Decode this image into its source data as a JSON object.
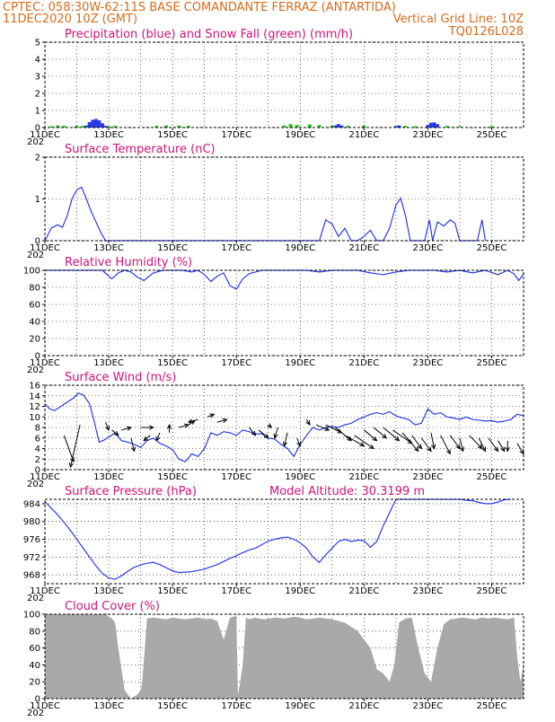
{
  "header": {
    "line1_left": "CPTEC:  058:30W-62:11S  BASE COMANDANTE FERRAZ (ANTARTIDA)",
    "line2_left": "11DEC2020 10Z (GMT)",
    "line2_right": "Vertical Grid Line: 10Z",
    "line3_right": "TQ0126L028",
    "under_label": "202"
  },
  "x_labels": [
    "11DEC",
    "13DEC",
    "15DEC",
    "17DEC",
    "19DEC",
    "21DEC",
    "23DEC",
    "25DEC"
  ],
  "colors": {
    "blue": "#2a3be6",
    "green": "#22c61e",
    "title": "#d1127a",
    "header": "#d86a1a",
    "cloud": "#a9a9a9"
  },
  "chart_data": [
    {
      "type": "bar",
      "title": "Precipitation (blue) and Snow Fall (green) (mm/h)",
      "yticks": [
        "0",
        "1",
        "2",
        "3",
        "4",
        "5"
      ],
      "ylim": [
        0,
        5
      ],
      "xlim": [
        0,
        15
      ],
      "series": [
        {
          "name": "Precipitation",
          "color": "#2a3be6",
          "points": [
            [
              1.3,
              0.12
            ],
            [
              1.4,
              0.32
            ],
            [
              1.5,
              0.45
            ],
            [
              1.6,
              0.5
            ],
            [
              1.7,
              0.42
            ],
            [
              1.8,
              0.25
            ],
            [
              1.9,
              0.1
            ],
            [
              9.1,
              0.12
            ],
            [
              9.2,
              0.2
            ],
            [
              9.3,
              0.12
            ],
            [
              11.0,
              0.08
            ],
            [
              11.1,
              0.12
            ],
            [
              12.0,
              0.15
            ],
            [
              12.1,
              0.28
            ],
            [
              12.2,
              0.3
            ],
            [
              12.3,
              0.2
            ]
          ]
        },
        {
          "name": "Snow Fall",
          "color": "#22c61e",
          "points": [
            [
              0.2,
              0.08
            ],
            [
              0.4,
              0.12
            ],
            [
              0.6,
              0.1
            ],
            [
              1.0,
              0.1
            ],
            [
              1.2,
              0.1
            ],
            [
              2.0,
              0.08
            ],
            [
              2.2,
              0.1
            ],
            [
              3.5,
              0.1
            ],
            [
              3.8,
              0.12
            ],
            [
              4.2,
              0.12
            ],
            [
              4.5,
              0.1
            ],
            [
              7.5,
              0.12
            ],
            [
              7.7,
              0.2
            ],
            [
              7.9,
              0.15
            ],
            [
              8.3,
              0.18
            ],
            [
              8.6,
              0.15
            ],
            [
              9.0,
              0.12
            ],
            [
              9.5,
              0.1
            ],
            [
              10.0,
              0.12
            ],
            [
              11.3,
              0.1
            ],
            [
              11.6,
              0.08
            ],
            [
              12.6,
              0.1
            ],
            [
              13.0,
              0.08
            ],
            [
              14.0,
              0.08
            ]
          ]
        }
      ]
    },
    {
      "type": "line",
      "title": "Surface Temperature (nC)",
      "yticks": [
        "0",
        "1",
        "2"
      ],
      "ylim": [
        0,
        2
      ],
      "xlim": [
        0,
        15
      ],
      "x": [
        0,
        0.1,
        0.2,
        0.4,
        0.55,
        0.7,
        0.85,
        1.0,
        1.15,
        1.3,
        1.45,
        1.6,
        1.75,
        1.9,
        2.0,
        8.6,
        8.8,
        9.0,
        9.2,
        9.4,
        9.6,
        9.8,
        10.0,
        10.2,
        10.4,
        10.6,
        10.8,
        11.0,
        11.15,
        11.3,
        11.45,
        11.6,
        11.75,
        11.9,
        12.05,
        12.15,
        12.3,
        12.5,
        12.7,
        12.85,
        13.0,
        13.2,
        13.4,
        13.55,
        13.7,
        13.8
      ],
      "values": [
        0,
        0.15,
        0.3,
        0.38,
        0.32,
        0.6,
        1.0,
        1.22,
        1.28,
        1.0,
        0.7,
        0.45,
        0.2,
        0.0,
        0.0,
        0.0,
        0.5,
        0.4,
        0.1,
        0.3,
        0.0,
        0.0,
        0.1,
        0.25,
        0.0,
        0.0,
        0.3,
        0.85,
        1.02,
        0.6,
        0.0,
        0.0,
        0.0,
        0.0,
        0.5,
        0.0,
        0.45,
        0.35,
        0.5,
        0.42,
        0.0,
        0.0,
        0.0,
        0.0,
        0.5,
        0.0
      ]
    },
    {
      "type": "line",
      "title": "Relative Humidity (%)",
      "yticks": [
        "0",
        "20",
        "40",
        "60",
        "80",
        "100"
      ],
      "ylim": [
        0,
        100
      ],
      "xlim": [
        0,
        15
      ],
      "x": [
        0,
        1,
        1.8,
        1.95,
        2.1,
        2.3,
        2.5,
        2.7,
        2.9,
        3.1,
        3.4,
        3.7,
        4.0,
        4.3,
        4.6,
        4.8,
        5.0,
        5.2,
        5.4,
        5.6,
        5.8,
        6.0,
        6.2,
        6.4,
        6.6,
        6.8,
        7.0,
        7.4,
        7.8,
        8.2,
        8.6,
        9.0,
        9.4,
        9.8,
        10.2,
        10.6,
        11.0,
        11.4,
        11.8,
        12.2,
        12.6,
        13.0,
        13.4,
        13.8,
        14.2,
        14.5,
        14.7,
        14.85,
        15.0
      ],
      "values": [
        100,
        100,
        100,
        95,
        90,
        97,
        100,
        98,
        92,
        88,
        97,
        100,
        100,
        100,
        98,
        100,
        95,
        87,
        93,
        97,
        82,
        78,
        90,
        96,
        98,
        100,
        100,
        100,
        100,
        100,
        98,
        100,
        100,
        100,
        97,
        95,
        98,
        100,
        100,
        100,
        98,
        100,
        97,
        100,
        95,
        100,
        96,
        88,
        96
      ]
    },
    {
      "type": "line",
      "title": "Surface Wind (m/s)",
      "yticks": [
        "0",
        "2",
        "4",
        "6",
        "8",
        "10",
        "12",
        "14",
        "16"
      ],
      "ylim": [
        0,
        16
      ],
      "xlim": [
        0,
        15
      ],
      "x": [
        0,
        0.15,
        0.3,
        0.5,
        0.7,
        0.9,
        1.05,
        1.2,
        1.4,
        1.55,
        1.7,
        1.85,
        2.0,
        2.2,
        2.4,
        2.6,
        2.8,
        3.0,
        3.2,
        3.4,
        3.6,
        3.8,
        4.0,
        4.2,
        4.4,
        4.6,
        4.8,
        5.0,
        5.2,
        5.4,
        5.6,
        5.8,
        6.0,
        6.2,
        6.4,
        6.6,
        6.8,
        7.0,
        7.2,
        7.4,
        7.6,
        7.8,
        8.0,
        8.2,
        8.4,
        8.6,
        8.8,
        9.0,
        9.2,
        9.4,
        9.6,
        9.8,
        10.0,
        10.2,
        10.4,
        10.6,
        10.8,
        11.0,
        11.2,
        11.4,
        11.6,
        11.8,
        12.0,
        12.2,
        12.4,
        12.6,
        12.8,
        13.0,
        13.2,
        13.4,
        13.6,
        13.8,
        14.0,
        14.2,
        14.4,
        14.6,
        14.8,
        15.0
      ],
      "values": [
        12.5,
        11.5,
        11.2,
        12.0,
        12.8,
        13.6,
        14.5,
        14.2,
        12.5,
        9.0,
        5.2,
        5.6,
        6.2,
        7.0,
        5.5,
        5.2,
        4.8,
        4.2,
        5.5,
        6.0,
        5.0,
        4.5,
        3.8,
        2.0,
        1.5,
        3.0,
        2.5,
        4.0,
        7.0,
        6.5,
        7.2,
        7.0,
        6.5,
        7.5,
        7.2,
        6.8,
        6.8,
        6.0,
        5.8,
        4.8,
        4.0,
        2.5,
        4.8,
        6.5,
        8.0,
        7.5,
        8.0,
        8.2,
        8.0,
        8.5,
        8.8,
        9.5,
        10.0,
        10.5,
        10.8,
        10.5,
        11.0,
        10.2,
        9.8,
        9.5,
        8.5,
        8.8,
        11.5,
        10.5,
        10.8,
        10.0,
        9.8,
        9.5,
        10.0,
        9.5,
        9.4,
        9.2,
        9.3,
        9.0,
        9.2,
        9.5,
        10.5,
        10.2
      ],
      "arrows_x": [
        0.6,
        1.1,
        1.9,
        2.1,
        2.4,
        2.7,
        3.0,
        3.3,
        3.6,
        3.9,
        4.2,
        4.5,
        4.8,
        5.1,
        5.4,
        6.4,
        6.7,
        7.0,
        7.3,
        7.6,
        7.9,
        8.2,
        8.5,
        8.8,
        9.1,
        9.4,
        9.7,
        10.0,
        10.3,
        10.6,
        10.9,
        11.2,
        11.5,
        11.8,
        12.1,
        12.4,
        12.7,
        13.0,
        13.3,
        13.6,
        13.9,
        14.2,
        14.5,
        14.8
      ],
      "arrows_y": [
        6.5,
        8.5,
        9.0,
        7.5,
        7.5,
        6.0,
        8.0,
        6.5,
        7.0,
        7.0,
        8.0,
        8.5,
        9.5,
        10.0,
        9.0,
        8.0,
        7.5,
        8.5,
        8.0,
        7.0,
        6.0,
        9.5,
        8.5,
        8.5,
        8.0,
        6.5,
        6.5,
        7.5,
        8.0,
        8.0,
        7.5,
        7.0,
        6.5,
        6.0,
        7.0,
        6.5,
        6.5,
        6.0,
        6.5,
        6.0,
        6.0,
        5.5,
        5.5,
        5.0
      ],
      "arrows_dx": [
        0.3,
        -0.3,
        0.1,
        0.2,
        0.3,
        0.1,
        0.4,
        -0.2,
        -0.1,
        0.0,
        0.3,
        0.2,
        -0.3,
        0.2,
        0.3,
        0.2,
        0.3,
        0.1,
        -0.1,
        -0.1,
        0.1,
        0.1,
        0.4,
        0.5,
        0.5,
        0.6,
        0.6,
        0.4,
        0.4,
        0.5,
        0.6,
        0.5,
        0.3,
        0.3,
        0.1,
        0.3,
        0.3,
        0.1,
        0.4,
        0.2,
        0.3,
        0.2,
        0.0,
        0.2
      ],
      "arrows_dy": [
        -5.0,
        -8.0,
        -1.5,
        -1.0,
        0.5,
        -2.5,
        0.0,
        -1.0,
        -1.5,
        1.5,
        0.5,
        0.8,
        -0.5,
        0.5,
        0.5,
        -1.5,
        -1.5,
        -0.5,
        -2.0,
        -2.5,
        -1.5,
        -1.0,
        -1.0,
        -1.5,
        -2.5,
        -2.0,
        -2.5,
        -2.0,
        -2.0,
        -2.5,
        -2.5,
        -3.5,
        -2.5,
        -2.5,
        -3.0,
        -3.5,
        -2.5,
        -2.5,
        -2.5,
        -2.5,
        -2.5,
        -2.0,
        -2.0,
        -2.0
      ]
    },
    {
      "type": "line",
      "title": "Surface Pressure (hPa)",
      "annotation": "Model Altitude: 30.3199 m",
      "yticks": [
        "968",
        "972",
        "976",
        "980",
        "984"
      ],
      "ylim": [
        966,
        985
      ],
      "xlim": [
        0,
        15
      ],
      "x": [
        0,
        0.2,
        0.4,
        0.6,
        0.8,
        1.0,
        1.2,
        1.4,
        1.6,
        1.8,
        2.0,
        2.2,
        2.4,
        2.6,
        2.8,
        3.0,
        3.2,
        3.4,
        3.6,
        3.8,
        4.0,
        4.2,
        4.4,
        4.6,
        4.8,
        5.0,
        5.2,
        5.4,
        5.6,
        5.8,
        6.0,
        6.2,
        6.4,
        6.6,
        6.8,
        7.0,
        7.2,
        7.4,
        7.6,
        7.8,
        8.0,
        8.2,
        8.4,
        8.6,
        8.8,
        9.0,
        9.2,
        9.4,
        9.6,
        9.8,
        10.0,
        10.2,
        10.4,
        10.6,
        10.8,
        11.0,
        11.2,
        11.4,
        11.6,
        11.8,
        12.0,
        12.2,
        12.4,
        12.6,
        12.8,
        13.0,
        13.2,
        13.4,
        13.6,
        13.8,
        14.0,
        14.2,
        14.4,
        14.6
      ],
      "values": [
        984.5,
        983.0,
        981.5,
        979.8,
        978.0,
        976.0,
        974.0,
        972.0,
        970.0,
        968.3,
        967.3,
        967.0,
        967.8,
        968.8,
        969.7,
        970.2,
        970.6,
        970.8,
        970.3,
        969.6,
        968.9,
        968.5,
        968.6,
        968.7,
        969.0,
        969.3,
        969.8,
        970.3,
        971.0,
        971.7,
        972.3,
        973.0,
        973.6,
        974.0,
        974.8,
        975.6,
        976.0,
        976.3,
        976.5,
        976.0,
        975.2,
        974.0,
        972.0,
        970.8,
        972.5,
        974.0,
        975.5,
        976.0,
        975.5,
        975.8,
        975.7,
        974.2,
        975.5,
        979.0,
        982.0,
        985.5,
        986.0,
        986.0,
        986.0,
        986.0,
        986.0,
        986.0,
        986.0,
        986.0,
        985.4,
        985.0,
        984.8,
        984.7,
        984.3,
        984.0,
        984.0,
        984.4,
        984.9,
        985.2
      ]
    },
    {
      "type": "area",
      "title": "Cloud Cover (%)",
      "yticks": [
        "0",
        "20",
        "40",
        "60",
        "80",
        "100"
      ],
      "ylim": [
        0,
        100
      ],
      "xlim": [
        0,
        15
      ],
      "x": [
        0,
        1.0,
        1.6,
        1.9,
        2.1,
        2.2,
        2.3,
        2.5,
        2.7,
        2.9,
        3.0,
        3.05,
        3.2,
        3.4,
        3.6,
        3.8,
        4.0,
        4.2,
        4.4,
        4.6,
        4.8,
        5.0,
        5.2,
        5.4,
        5.6,
        5.8,
        6.0,
        6.05,
        6.1,
        6.2,
        6.3,
        6.4,
        6.5,
        6.6,
        6.7,
        6.9,
        7.2,
        7.5,
        7.8,
        8.0,
        8.2,
        8.4,
        8.6,
        8.8,
        9.0,
        9.2,
        9.4,
        9.6,
        9.8,
        10.0,
        10.2,
        10.4,
        10.6,
        10.8,
        10.95,
        11.1,
        11.3,
        11.5,
        11.7,
        11.9,
        12.1,
        12.3,
        12.5,
        12.7,
        12.9,
        13.1,
        13.3,
        13.5,
        13.7,
        13.9,
        14.1,
        14.3,
        14.5,
        14.6,
        14.7,
        14.8,
        14.9,
        15.0
      ],
      "values": [
        100,
        100,
        100,
        100,
        95,
        90,
        60,
        10,
        0,
        5,
        10,
        20,
        95,
        96,
        95,
        94,
        96,
        95,
        94,
        95,
        96,
        94,
        95,
        92,
        70,
        96,
        98,
        5,
        15,
        40,
        96,
        94,
        95,
        96,
        95,
        94,
        96,
        95,
        97,
        96,
        94,
        95,
        96,
        95,
        94,
        92,
        90,
        85,
        80,
        70,
        60,
        35,
        30,
        20,
        40,
        90,
        95,
        96,
        60,
        30,
        20,
        60,
        88,
        94,
        95,
        96,
        95,
        94,
        96,
        95,
        96,
        95,
        94,
        95,
        96,
        50,
        20,
        40
      ]
    }
  ]
}
